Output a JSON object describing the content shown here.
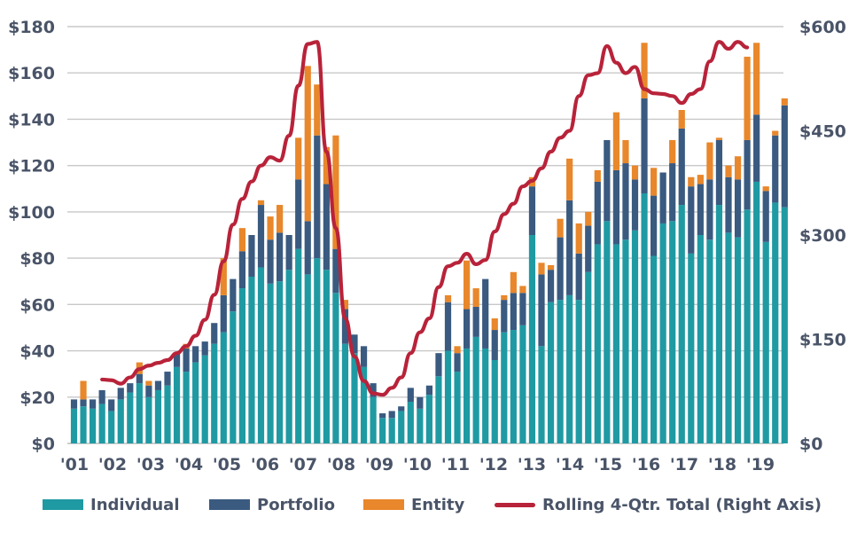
{
  "chart_data": {
    "type": "bar",
    "stacked": true,
    "x_tick_labels": [
      "'01",
      "'02",
      "'03",
      "'04",
      "'05",
      "'06",
      "'07",
      "'08",
      "'09",
      "'10",
      "'11",
      "'12",
      "'13",
      "'14",
      "'15",
      "'16",
      "'17",
      "'18",
      "'19"
    ],
    "y_left": {
      "lim": [
        0,
        180
      ],
      "ticks": [
        0,
        20,
        40,
        60,
        80,
        100,
        120,
        140,
        160,
        180
      ],
      "tick_labels": [
        "$0",
        "$20",
        "$40",
        "$60",
        "$80",
        "$100",
        "$120",
        "$140",
        "$160",
        "$180"
      ]
    },
    "y_right": {
      "lim": [
        0,
        600
      ],
      "ticks": [
        0,
        150,
        300,
        450,
        600
      ],
      "tick_labels": [
        "$0",
        "$150",
        "$300",
        "$450",
        "$600"
      ]
    },
    "grid": true,
    "legend_position": "bottom",
    "colors": {
      "Individual": "#1f9aa3",
      "Portfolio": "#3a5a80",
      "Entity": "#e8872b",
      "Rolling": "#b8233a",
      "grid": "#c8c8c8",
      "text": "#4a5468"
    },
    "series": [
      {
        "name": "Individual",
        "values": [
          15,
          16,
          15,
          17,
          14,
          19,
          22,
          26,
          20,
          23,
          25,
          33,
          31,
          35,
          38,
          43,
          48,
          57,
          67,
          72,
          76,
          69,
          70,
          75,
          84,
          73,
          80,
          75,
          65,
          43,
          39,
          33,
          20,
          11,
          11,
          14,
          18,
          15,
          21,
          29,
          40,
          31,
          41,
          46,
          41,
          36,
          48,
          49,
          51,
          90,
          42,
          61,
          62,
          64,
          62,
          74,
          86,
          96,
          86,
          88,
          92,
          108,
          81,
          95,
          96,
          103,
          82,
          90,
          88,
          103,
          91,
          89,
          101,
          113,
          87,
          104,
          102
        ],
        "Individual_note": ""
      },
      {
        "name": "Portfolio",
        "values": [
          4,
          3,
          4,
          6,
          5,
          5,
          4,
          4,
          5,
          4,
          6,
          6,
          10,
          7,
          6,
          9,
          16,
          14,
          16,
          18,
          27,
          19,
          21,
          15,
          30,
          23,
          53,
          37,
          19,
          15,
          8,
          9,
          6,
          2,
          3,
          2,
          6,
          5,
          4,
          10,
          21,
          8,
          17,
          13,
          30,
          13,
          14,
          16,
          14,
          21,
          31,
          14,
          27,
          41,
          20,
          20,
          27,
          35,
          32,
          33,
          22,
          41,
          26,
          22,
          25,
          33,
          29,
          22,
          26,
          28,
          24,
          25,
          30,
          29,
          22,
          29,
          44
        ]
      },
      {
        "name": "Entity",
        "values": [
          0,
          8,
          0,
          0,
          0,
          0,
          0,
          5,
          2,
          0,
          0,
          0,
          2,
          0,
          0,
          0,
          16,
          0,
          10,
          0,
          2,
          10,
          12,
          0,
          18,
          67,
          22,
          16,
          49,
          4,
          0,
          0,
          0,
          0,
          0,
          0,
          0,
          0,
          0,
          0,
          3,
          3,
          21,
          8,
          0,
          5,
          2,
          9,
          3,
          4,
          5,
          2,
          8,
          18,
          13,
          6,
          5,
          0,
          25,
          10,
          6,
          24,
          12,
          0,
          10,
          8,
          4,
          4,
          16,
          1,
          5,
          10,
          36,
          31,
          2,
          2,
          3
        ]
      },
      {
        "name": "Rolling 4-Qtr. Total (Right Axis)",
        "axis": "right",
        "start_index": 3,
        "values": [
          92,
          91,
          86,
          95,
          107,
          112,
          116,
          120,
          130,
          140,
          155,
          178,
          214,
          262,
          315,
          352,
          377,
          400,
          412,
          407,
          443,
          515,
          575,
          578,
          420,
          310,
          180,
          125,
          90,
          72,
          70,
          80,
          95,
          130,
          160,
          180,
          225,
          255,
          260,
          273,
          258,
          264,
          305,
          330,
          345,
          370,
          378,
          396,
          420,
          440,
          450,
          500,
          530,
          533,
          572,
          548,
          533,
          542,
          510,
          504,
          503,
          500,
          490,
          503,
          510,
          550,
          578,
          568,
          578,
          570
        ]
      }
    ]
  },
  "legend": [
    {
      "label": "Individual",
      "kind": "bar",
      "color": "#1f9aa3"
    },
    {
      "label": "Portfolio",
      "kind": "bar",
      "color": "#3a5a80"
    },
    {
      "label": "Entity",
      "kind": "bar",
      "color": "#e8872b"
    },
    {
      "label": "Rolling 4-Qtr. Total (Right Axis)",
      "kind": "line",
      "color": "#b8233a"
    }
  ]
}
